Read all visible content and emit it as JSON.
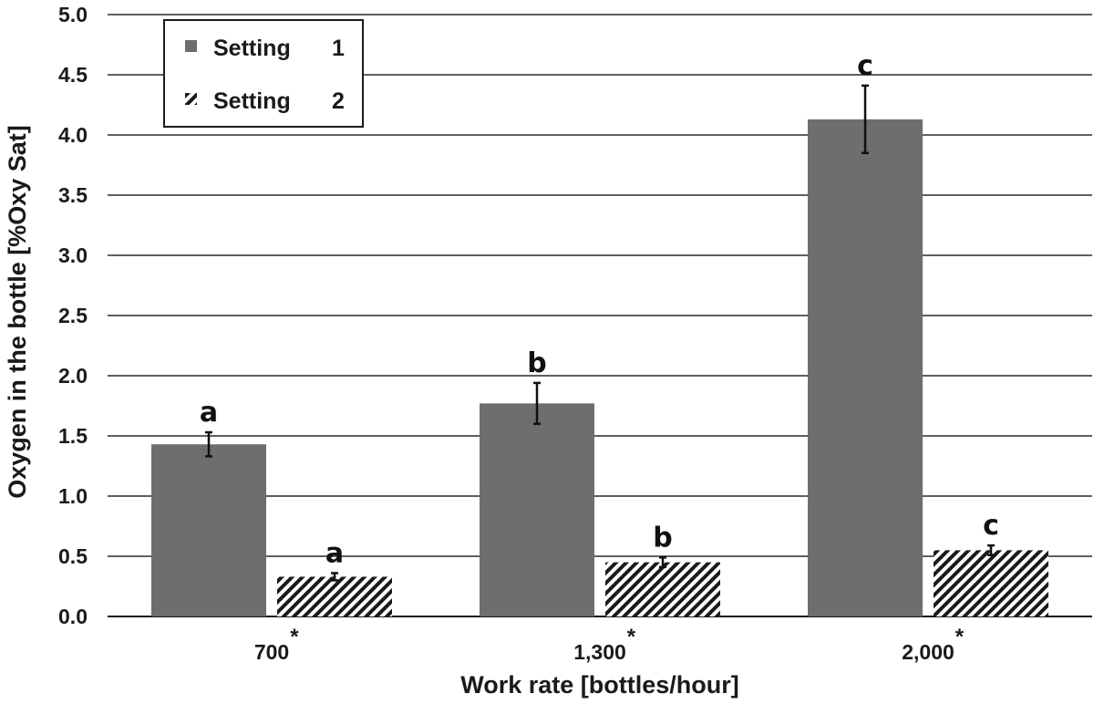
{
  "chart_data": {
    "type": "bar",
    "categories": [
      "700",
      "1,300",
      "2,000"
    ],
    "category_marker": "*",
    "series": [
      {
        "name": "Setting 1",
        "values": [
          1.43,
          1.77,
          4.13
        ],
        "error": [
          0.1,
          0.17,
          0.28
        ],
        "labels": [
          "a",
          "b",
          "c"
        ],
        "fill": "#6e6e6e",
        "pattern": "solid"
      },
      {
        "name": "Setting 2",
        "values": [
          0.33,
          0.45,
          0.55
        ],
        "error": [
          0.03,
          0.04,
          0.04
        ],
        "labels": [
          "a",
          "b",
          "c"
        ],
        "fill": "#1a1a1a",
        "pattern": "diagonal-hatch"
      }
    ],
    "title": "",
    "xlabel": "Work rate [bottles/hour]",
    "ylabel": "Oxygen in the bottle [%Oxy Sat]",
    "ylim": [
      0,
      5
    ],
    "yticks": [
      "0.0",
      "0.5",
      "1.0",
      "1.5",
      "2.0",
      "2.5",
      "3.0",
      "3.5",
      "4.0",
      "4.5",
      "5.0"
    ],
    "grid": "horizontal",
    "legend": {
      "position": "top-left",
      "entries": [
        {
          "setting": "Setting",
          "number": "1"
        },
        {
          "setting": "Setting",
          "number": "2"
        }
      ]
    }
  }
}
